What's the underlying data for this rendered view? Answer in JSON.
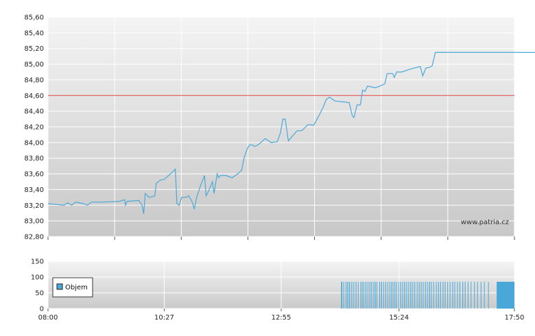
{
  "chart_data": [
    {
      "type": "line",
      "title": "",
      "xlabel": "",
      "ylabel": "",
      "ylim": [
        82.8,
        85.6
      ],
      "yticks": [
        "85,60",
        "85,40",
        "85,20",
        "85,00",
        "84,80",
        "84,60",
        "84,40",
        "84,20",
        "84,00",
        "83,80",
        "83,60",
        "83,40",
        "83,20",
        "83,00",
        "82,80"
      ],
      "grid": true,
      "reference_line": {
        "value": 84.6,
        "color": "#e04040"
      },
      "series": [
        {
          "color": "#4aa8d8",
          "points": [
            [
              0,
              83.22
            ],
            [
              10,
              83.21
            ],
            [
              20,
              83.2
            ],
            [
              25,
              83.23
            ],
            [
              30,
              83.2
            ],
            [
              35,
              83.24
            ],
            [
              45,
              83.22
            ],
            [
              50,
              83.2
            ],
            [
              55,
              83.24
            ],
            [
              70,
              83.24
            ],
            [
              90,
              83.25
            ],
            [
              97,
              83.27
            ],
            [
              98,
              83.2
            ],
            [
              100,
              83.25
            ],
            [
              115,
              83.26
            ],
            [
              119,
              83.2
            ],
            [
              121,
              83.09
            ],
            [
              123,
              83.35
            ],
            [
              128,
              83.3
            ],
            [
              135,
              83.32
            ],
            [
              137,
              83.48
            ],
            [
              142,
              83.52
            ],
            [
              147,
              83.53
            ],
            [
              155,
              83.6
            ],
            [
              161,
              83.66
            ],
            [
              163,
              83.22
            ],
            [
              166,
              83.2
            ],
            [
              169,
              83.3
            ],
            [
              174,
              83.3
            ],
            [
              178,
              83.32
            ],
            [
              182,
              83.25
            ],
            [
              185,
              83.15
            ],
            [
              188,
              83.3
            ],
            [
              193,
              83.45
            ],
            [
              198,
              83.58
            ],
            [
              200,
              83.32
            ],
            [
              203,
              83.38
            ],
            [
              208,
              83.5
            ],
            [
              210,
              83.35
            ],
            [
              214,
              83.6
            ],
            [
              216,
              83.55
            ],
            [
              218,
              83.58
            ],
            [
              225,
              83.58
            ],
            [
              233,
              83.55
            ],
            [
              240,
              83.6
            ],
            [
              245,
              83.65
            ],
            [
              248,
              83.8
            ],
            [
              252,
              83.92
            ],
            [
              255,
              83.97
            ],
            [
              258,
              83.97
            ],
            [
              262,
              83.95
            ],
            [
              267,
              83.98
            ],
            [
              275,
              84.05
            ],
            [
              282,
              84.0
            ],
            [
              290,
              84.01
            ],
            [
              294,
              84.12
            ],
            [
              297,
              84.3
            ],
            [
              300,
              84.3
            ],
            [
              304,
              84.02
            ],
            [
              309,
              84.08
            ],
            [
              315,
              84.15
            ],
            [
              321,
              84.15
            ],
            [
              329,
              84.23
            ],
            [
              336,
              84.22
            ],
            [
              342,
              84.33
            ],
            [
              348,
              84.45
            ],
            [
              352,
              84.55
            ],
            [
              356,
              84.58
            ],
            [
              363,
              84.53
            ],
            [
              372,
              84.52
            ],
            [
              381,
              84.51
            ],
            [
              385,
              84.34
            ],
            [
              387,
              84.32
            ],
            [
              391,
              84.48
            ],
            [
              395,
              84.48
            ],
            [
              398,
              84.67
            ],
            [
              401,
              84.65
            ],
            [
              404,
              84.72
            ],
            [
              414,
              84.7
            ],
            [
              420,
              84.72
            ],
            [
              426,
              84.75
            ],
            [
              429,
              84.88
            ],
            [
              432,
              84.88
            ],
            [
              436,
              84.88
            ],
            [
              438,
              84.83
            ],
            [
              441,
              84.9
            ],
            [
              448,
              84.9
            ],
            [
              456,
              84.93
            ],
            [
              463,
              84.95
            ],
            [
              471,
              84.97
            ],
            [
              474,
              84.85
            ],
            [
              478,
              84.95
            ],
            [
              483,
              84.96
            ],
            [
              486,
              84.98
            ],
            [
              490,
              85.15
            ],
            [
              540,
              85.15
            ],
            [
              680,
              85.15
            ],
            [
              750,
              85.15
            ]
          ]
        }
      ]
    },
    {
      "type": "bar",
      "ylim": [
        0,
        150
      ],
      "yticks": [
        "150",
        "100",
        "50",
        "0"
      ],
      "legend": {
        "label": "Objem",
        "position": "top-left"
      },
      "series": [
        {
          "name": "Objem",
          "color": "#4aa8d8"
        }
      ],
      "bars_value": 85,
      "bars_segments": [
        [
          0.6284,
          0.6309
        ],
        [
          0.6333,
          0.6348
        ],
        [
          0.6383,
          0.6393
        ],
        [
          0.6417,
          0.6436
        ],
        [
          0.6457,
          0.6476
        ],
        [
          0.6505,
          0.6521
        ],
        [
          0.6549,
          0.6561
        ],
        [
          0.6596,
          0.6612
        ],
        [
          0.6644,
          0.6654
        ],
        [
          0.6701,
          0.6719
        ],
        [
          0.6743,
          0.6763
        ],
        [
          0.6791,
          0.6805
        ],
        [
          0.6831,
          0.6847
        ],
        [
          0.6876,
          0.6892
        ],
        [
          0.6918,
          0.6937
        ],
        [
          0.6965,
          0.6975
        ],
        [
          0.7003,
          0.7023
        ],
        [
          0.7045,
          0.7058
        ],
        [
          0.7103,
          0.7119
        ],
        [
          0.7144,
          0.7162
        ],
        [
          0.7192,
          0.7205
        ],
        [
          0.7235,
          0.7251
        ],
        [
          0.7281,
          0.7293
        ],
        [
          0.7324,
          0.7336
        ],
        [
          0.7364,
          0.7383
        ],
        [
          0.741,
          0.7428
        ],
        [
          0.7454,
          0.7472
        ],
        [
          0.7508,
          0.7521
        ],
        [
          0.7551,
          0.7567
        ],
        [
          0.7594,
          0.7606
        ],
        [
          0.7637,
          0.7656
        ],
        [
          0.7683,
          0.7697
        ],
        [
          0.7725,
          0.7738
        ],
        [
          0.7769,
          0.7788
        ],
        [
          0.7814,
          0.7829
        ],
        [
          0.7856,
          0.7872
        ],
        [
          0.7907,
          0.7919
        ],
        [
          0.795,
          0.7967
        ],
        [
          0.7993,
          0.8009
        ],
        [
          0.8036,
          0.8051
        ],
        [
          0.8083,
          0.8099
        ],
        [
          0.8126,
          0.8138
        ],
        [
          0.817,
          0.8189
        ],
        [
          0.8214,
          0.8229
        ],
        [
          0.8262,
          0.8276
        ],
        [
          0.8318,
          0.8333
        ],
        [
          0.8363,
          0.8379
        ],
        [
          0.8408,
          0.8424
        ],
        [
          0.8462,
          0.8478
        ],
        [
          0.8507,
          0.8523
        ],
        [
          0.8561,
          0.8575
        ],
        [
          0.8612,
          0.8627
        ],
        [
          0.8668,
          0.8684
        ],
        [
          0.8713,
          0.8728
        ],
        [
          0.8771,
          0.8786
        ],
        [
          0.8822,
          0.8839
        ],
        [
          0.8884,
          0.8901
        ],
        [
          0.8936,
          0.8952
        ],
        [
          0.8999,
          0.9013
        ],
        [
          0.9063,
          0.9077
        ],
        [
          0.9136,
          0.9151
        ],
        [
          0.9201,
          0.9213
        ],
        [
          0.9277,
          0.9289
        ],
        [
          0.9348,
          0.9362
        ],
        [
          0.9436,
          0.945
        ],
        [
          0.9619,
          1.0
        ]
      ]
    }
  ],
  "x_axis": {
    "range_minutes": [
      0,
      590
    ],
    "tick_labels": [
      "08:00",
      "10:27",
      "12:55",
      "15:24",
      "17:50"
    ],
    "tick_values": [
      0,
      147,
      295,
      444,
      590
    ]
  },
  "watermark": "www.patria.cz"
}
